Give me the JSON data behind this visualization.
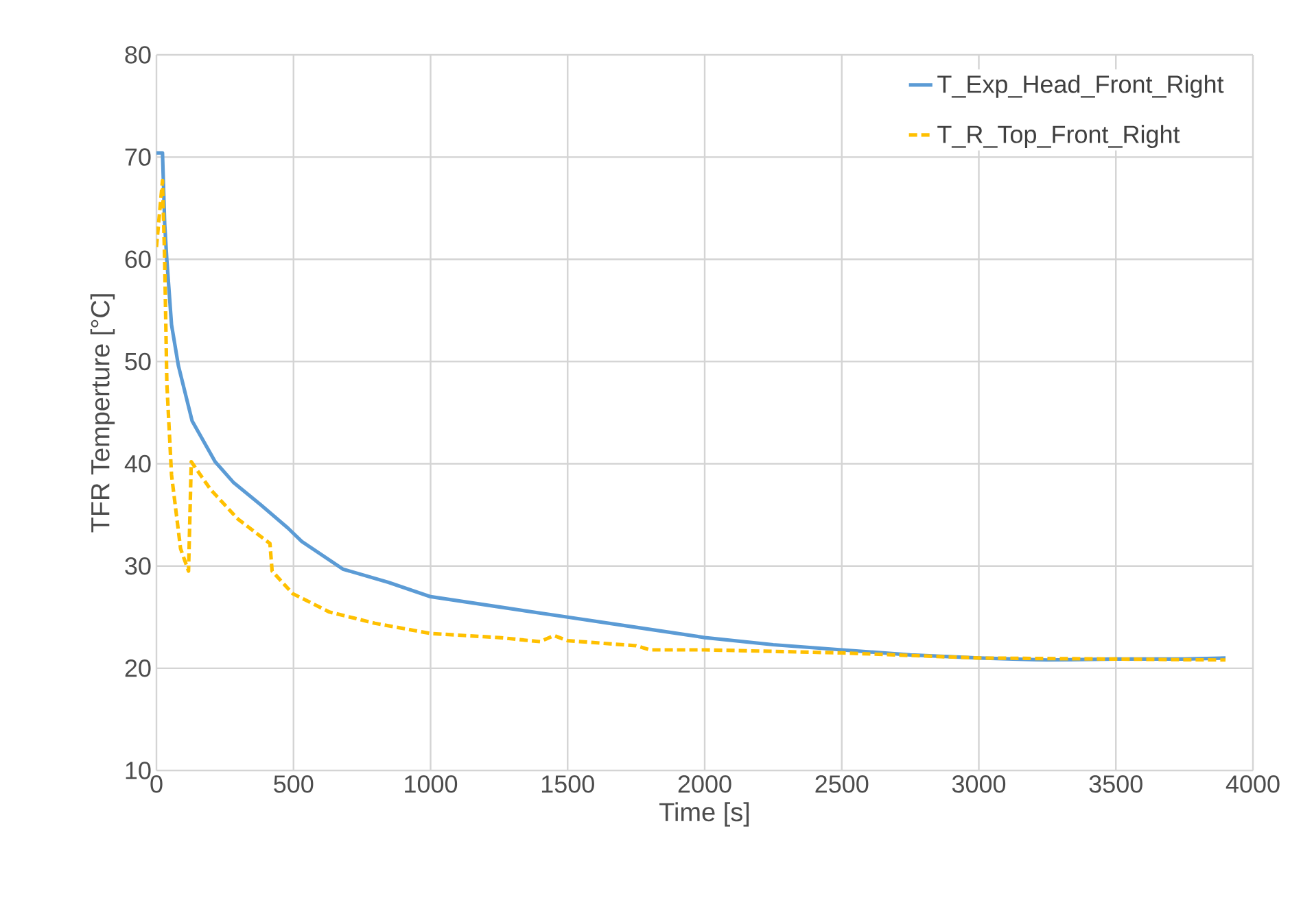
{
  "chart_data": {
    "type": "line",
    "xlabel": "Time [s]",
    "ylabel": "TFR Temperture [°C]",
    "xlim": [
      0,
      4000
    ],
    "ylim": [
      10,
      80
    ],
    "xticks": [
      0,
      500,
      1000,
      1500,
      2000,
      2500,
      3000,
      3500,
      4000
    ],
    "yticks": [
      10,
      20,
      30,
      40,
      50,
      60,
      70,
      80
    ],
    "grid": true,
    "legend": "top right",
    "marker": "none",
    "series": [
      {
        "name": "T_Exp_Head_Front_Right",
        "color": "#5b9bd5",
        "line_style": "solid",
        "x": [
          0,
          22,
          30,
          38,
          55,
          80,
          130,
          214,
          280,
          380,
          480,
          530,
          680,
          846,
          1000,
          1250,
          1500,
          1750,
          2000,
          2250,
          2500,
          2750,
          3000,
          3250,
          3500,
          3750,
          3900
        ],
        "values": [
          70.4,
          70.4,
          63.5,
          59.9,
          53.6,
          49.6,
          44.2,
          40.2,
          38.2,
          36.0,
          33.7,
          32.4,
          29.7,
          28.4,
          27.0,
          26.0,
          25.0,
          24.0,
          23.0,
          22.3,
          21.8,
          21.3,
          21.0,
          20.8,
          20.9,
          20.9,
          21.0
        ]
      },
      {
        "name": "T_R_Top_Front_Right",
        "color": "#ffc000",
        "line_style": "dashed",
        "x": [
          0,
          22,
          30,
          38,
          55,
          88,
          117,
          127,
          197,
          297,
          414,
          422,
          497,
          631,
          797,
          1000,
          1250,
          1400,
          1450,
          1500,
          1750,
          1800,
          2000,
          2500,
          3000,
          3500,
          3900
        ],
        "values": [
          61.2,
          67.7,
          59.9,
          47.8,
          38.9,
          31.7,
          29.5,
          40.2,
          37.5,
          34.6,
          32.2,
          29.5,
          27.3,
          25.5,
          24.4,
          23.4,
          23.0,
          22.6,
          23.2,
          22.7,
          22.2,
          21.8,
          21.8,
          21.5,
          21.0,
          20.9,
          20.8
        ]
      }
    ]
  }
}
